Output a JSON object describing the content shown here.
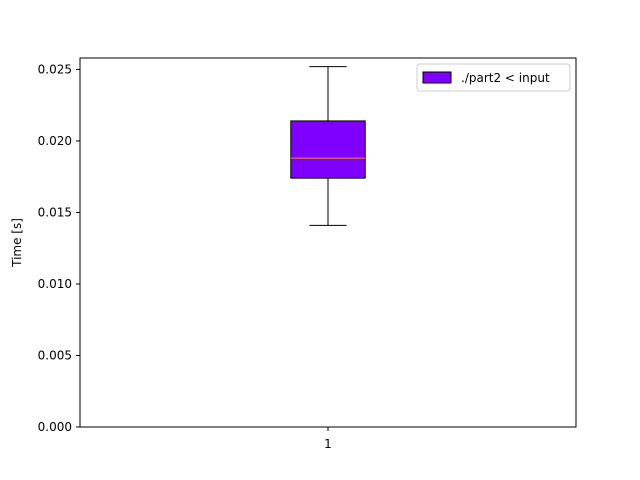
{
  "chart_data": {
    "type": "box",
    "title": "",
    "xlabel": "",
    "ylabel": "Time [s]",
    "categories": [
      "1"
    ],
    "ylim": [
      0,
      0.0258
    ],
    "yticks": [
      0.0,
      0.005,
      0.01,
      0.015,
      0.02,
      0.025
    ],
    "ytick_labels": [
      "0.000",
      "0.005",
      "0.010",
      "0.015",
      "0.020",
      "0.025"
    ],
    "series": [
      {
        "name": "./part2 < input",
        "whisker_low": 0.0141,
        "q1": 0.0174,
        "median": 0.0188,
        "q3": 0.0214,
        "whisker_high": 0.0252
      }
    ],
    "legend": {
      "placement": "top-right",
      "entries": [
        "./part2 < input"
      ]
    },
    "colors": {
      "box_fill": "#7f00ff",
      "median_line": "#ff8c00",
      "edge": "#000000"
    },
    "grid": false
  }
}
